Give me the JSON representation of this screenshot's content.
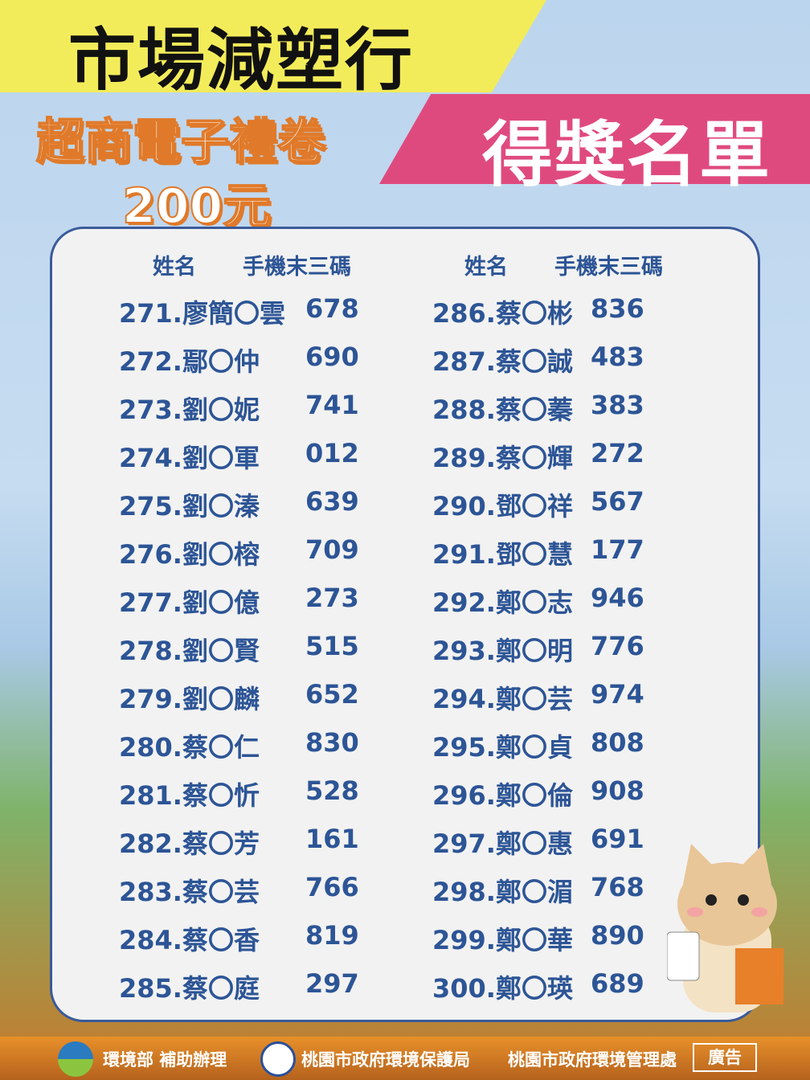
{
  "header": {
    "title": "市場減塑行",
    "prize_line1": "超商電子禮卷",
    "prize_line2": "200元",
    "winners_label": "得獎名單"
  },
  "columns": {
    "name": "姓名",
    "phone": "手機末三碼"
  },
  "left": [
    [
      "271.廖簡〇雲",
      "678"
    ],
    [
      "272.鄢〇仲",
      "690"
    ],
    [
      "273.劉〇妮",
      "741"
    ],
    [
      "274.劉〇軍",
      "012"
    ],
    [
      "275.劉〇溱",
      "639"
    ],
    [
      "276.劉〇榕",
      "709"
    ],
    [
      "277.劉〇億",
      "273"
    ],
    [
      "278.劉〇賢",
      "515"
    ],
    [
      "279.劉〇麟",
      "652"
    ],
    [
      "280.蔡〇仁",
      "830"
    ],
    [
      "281.蔡〇忻",
      "528"
    ],
    [
      "282.蔡〇芳",
      "161"
    ],
    [
      "283.蔡〇芸",
      "766"
    ],
    [
      "284.蔡〇香",
      "819"
    ],
    [
      "285.蔡〇庭",
      "297"
    ]
  ],
  "right": [
    [
      "286.蔡〇彬",
      "836"
    ],
    [
      "287.蔡〇誠",
      "483"
    ],
    [
      "288.蔡〇蓁",
      "383"
    ],
    [
      "289.蔡〇輝",
      "272"
    ],
    [
      "290.鄧〇祥",
      "567"
    ],
    [
      "291.鄧〇慧",
      "177"
    ],
    [
      "292.鄭〇志",
      "946"
    ],
    [
      "293.鄭〇明",
      "776"
    ],
    [
      "294.鄭〇芸",
      "974"
    ],
    [
      "295.鄭〇貞",
      "808"
    ],
    [
      "296.鄭〇倫",
      "908"
    ],
    [
      "297.鄭〇惠",
      "691"
    ],
    [
      "298.鄭〇湄",
      "768"
    ],
    [
      "299.鄭〇華",
      "890"
    ],
    [
      "300.鄭〇瑛",
      "689"
    ]
  ],
  "footer": {
    "sponsor": "環境部 補助辦理",
    "agency1": "桃園市政府環境保護局",
    "agency2": "桃園市政府環境管理處",
    "ad": "廣告"
  },
  "colors": {
    "text": "#2d5596",
    "yellow": "#f3ec5a",
    "pink": "#df4a7e"
  }
}
